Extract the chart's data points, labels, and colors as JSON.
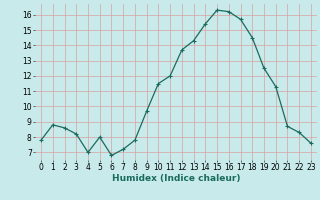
{
  "x": [
    0,
    1,
    2,
    3,
    4,
    5,
    6,
    7,
    8,
    9,
    10,
    11,
    12,
    13,
    14,
    15,
    16,
    17,
    18,
    19,
    20,
    21,
    22,
    23
  ],
  "y": [
    7.8,
    8.8,
    8.6,
    8.2,
    7.0,
    8.0,
    6.8,
    7.2,
    7.8,
    9.7,
    11.5,
    12.0,
    13.7,
    14.3,
    15.4,
    16.3,
    16.2,
    15.7,
    14.5,
    12.5,
    11.3,
    8.7,
    8.3,
    7.6
  ],
  "line_color": "#1a6b5e",
  "marker": "+",
  "marker_size": 3,
  "marker_linewidth": 0.8,
  "bg_color": "#c8eaea",
  "grid_color": "#d9a0a0",
  "xlabel": "Humidex (Indice chaleur)",
  "xlim": [
    -0.5,
    23.5
  ],
  "ylim": [
    6.5,
    16.7
  ],
  "yticks": [
    7,
    8,
    9,
    10,
    11,
    12,
    13,
    14,
    15,
    16
  ],
  "xticks": [
    0,
    1,
    2,
    3,
    4,
    5,
    6,
    7,
    8,
    9,
    10,
    11,
    12,
    13,
    14,
    15,
    16,
    17,
    18,
    19,
    20,
    21,
    22,
    23
  ],
  "tick_fontsize": 5.5,
  "label_fontsize": 6.5,
  "linewidth": 0.9
}
